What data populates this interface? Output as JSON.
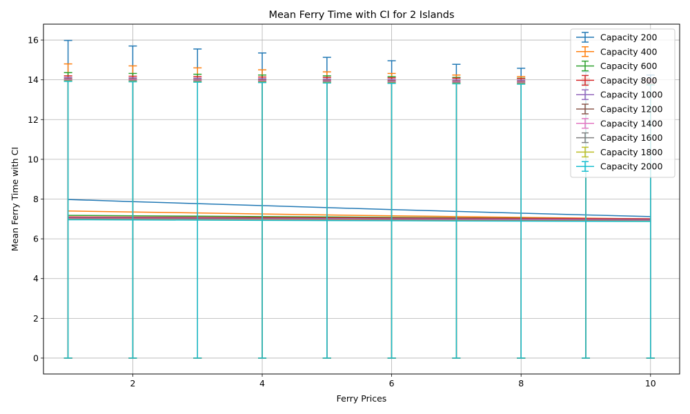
{
  "chart_data": {
    "type": "line",
    "title": "Mean Ferry Time with CI for 2 Islands",
    "xlabel": "Ferry Prices",
    "ylabel": "Mean Ferry Time with CI",
    "xlim": [
      0.62,
      10.45
    ],
    "ylim": [
      -0.8,
      16.8
    ],
    "xticks": [
      2,
      4,
      6,
      8,
      10
    ],
    "yticks": [
      0,
      2,
      4,
      6,
      8,
      10,
      12,
      14,
      16
    ],
    "grid": true,
    "legend_position": "top-right",
    "x": [
      1,
      2,
      3,
      4,
      5,
      6,
      7,
      8,
      9,
      10
    ],
    "series": [
      {
        "name": "Capacity 200",
        "color": "#1f77b4",
        "values": [
          7.98,
          7.87,
          7.77,
          7.67,
          7.57,
          7.47,
          7.38,
          7.29,
          7.2,
          7.12
        ],
        "upper": [
          15.98,
          15.7,
          15.55,
          15.35,
          15.13,
          14.96,
          14.78,
          14.58,
          14.4,
          14.24
        ],
        "lower": [
          0,
          0,
          0,
          0,
          0,
          0,
          0,
          0,
          0,
          0
        ]
      },
      {
        "name": "Capacity 400",
        "color": "#ff7f0e",
        "values": [
          7.4,
          7.35,
          7.3,
          7.25,
          7.2,
          7.16,
          7.12,
          7.08,
          7.04,
          7.0
        ],
        "upper": [
          14.8,
          14.7,
          14.6,
          14.5,
          14.4,
          14.32,
          14.24,
          14.16,
          14.08,
          14.0
        ],
        "lower": [
          0,
          0,
          0,
          0,
          0,
          0,
          0,
          0,
          0,
          0
        ]
      },
      {
        "name": "Capacity 600",
        "color": "#2ca02c",
        "values": [
          7.18,
          7.16,
          7.14,
          7.12,
          7.1,
          7.08,
          7.06,
          7.04,
          7.02,
          7.0
        ],
        "upper": [
          14.36,
          14.32,
          14.28,
          14.24,
          14.2,
          14.16,
          14.12,
          14.08,
          14.04,
          14.0
        ],
        "lower": [
          0,
          0,
          0,
          0,
          0,
          0,
          0,
          0,
          0,
          0
        ]
      },
      {
        "name": "Capacity 800",
        "color": "#d62728",
        "values": [
          7.1,
          7.09,
          7.08,
          7.07,
          7.06,
          7.05,
          7.04,
          7.03,
          7.02,
          7.01
        ],
        "upper": [
          14.2,
          14.18,
          14.16,
          14.14,
          14.12,
          14.1,
          14.08,
          14.06,
          14.04,
          14.02
        ],
        "lower": [
          0,
          0,
          0,
          0,
          0,
          0,
          0,
          0,
          0,
          0
        ]
      },
      {
        "name": "Capacity 1000",
        "color": "#9467bd",
        "values": [
          7.06,
          7.05,
          7.04,
          7.03,
          7.02,
          7.01,
          7.0,
          6.99,
          6.98,
          6.97
        ],
        "upper": [
          14.12,
          14.1,
          14.08,
          14.06,
          14.04,
          14.02,
          14.0,
          13.98,
          13.96,
          13.94
        ],
        "lower": [
          0,
          0,
          0,
          0,
          0,
          0,
          0,
          0,
          0,
          0
        ]
      },
      {
        "name": "Capacity 1200",
        "color": "#8c564b",
        "values": [
          7.03,
          7.02,
          7.01,
          7.0,
          6.99,
          6.98,
          6.97,
          6.96,
          6.95,
          6.94
        ],
        "upper": [
          14.06,
          14.04,
          14.02,
          14.0,
          13.98,
          13.96,
          13.94,
          13.92,
          13.9,
          13.88
        ],
        "lower": [
          0,
          0,
          0,
          0,
          0,
          0,
          0,
          0,
          0,
          0
        ]
      },
      {
        "name": "Capacity 1400",
        "color": "#e377c2",
        "values": [
          7.01,
          7.0,
          6.99,
          6.98,
          6.97,
          6.96,
          6.95,
          6.94,
          6.93,
          6.92
        ],
        "upper": [
          14.02,
          14.0,
          13.98,
          13.96,
          13.94,
          13.92,
          13.9,
          13.88,
          13.86,
          13.84
        ],
        "lower": [
          0,
          0,
          0,
          0,
          0,
          0,
          0,
          0,
          0,
          0
        ]
      },
      {
        "name": "Capacity 1600",
        "color": "#7f7f7f",
        "values": [
          6.99,
          6.98,
          6.97,
          6.96,
          6.95,
          6.94,
          6.93,
          6.92,
          6.91,
          6.9
        ],
        "upper": [
          13.98,
          13.96,
          13.94,
          13.92,
          13.9,
          13.88,
          13.86,
          13.84,
          13.82,
          13.8
        ],
        "lower": [
          0,
          0,
          0,
          0,
          0,
          0,
          0,
          0,
          0,
          0
        ]
      },
      {
        "name": "Capacity 1800",
        "color": "#bcbd22",
        "values": [
          6.97,
          6.96,
          6.95,
          6.94,
          6.93,
          6.92,
          6.91,
          6.9,
          6.89,
          6.88
        ],
        "upper": [
          13.94,
          13.92,
          13.9,
          13.88,
          13.86,
          13.84,
          13.82,
          13.8,
          13.78,
          13.76
        ],
        "lower": [
          0,
          0,
          0,
          0,
          0,
          0,
          0,
          0,
          0,
          0
        ]
      },
      {
        "name": "Capacity 2000",
        "color": "#17becf",
        "values": [
          6.96,
          6.95,
          6.94,
          6.93,
          6.92,
          6.91,
          6.9,
          6.89,
          6.88,
          6.87
        ],
        "upper": [
          13.92,
          13.9,
          13.88,
          13.86,
          13.84,
          13.82,
          13.8,
          13.78,
          13.76,
          13.74
        ],
        "lower": [
          0,
          0,
          0,
          0,
          0,
          0,
          0,
          0,
          0,
          0
        ]
      }
    ]
  }
}
